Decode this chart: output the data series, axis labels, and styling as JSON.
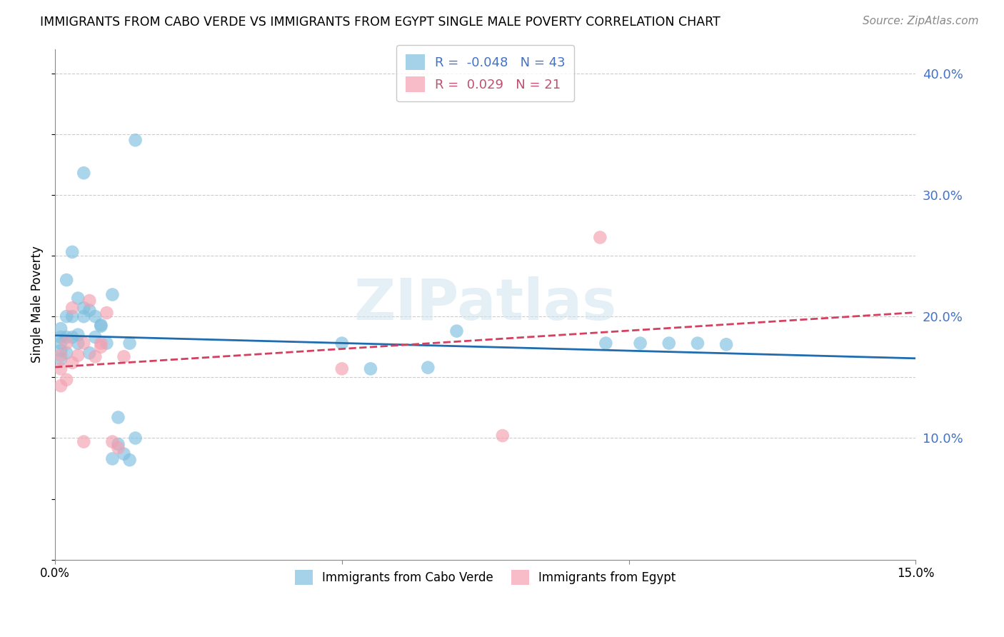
{
  "title": "IMMIGRANTS FROM CABO VERDE VS IMMIGRANTS FROM EGYPT SINGLE MALE POVERTY CORRELATION CHART",
  "source": "Source: ZipAtlas.com",
  "ylabel": "Single Male Poverty",
  "x_min": 0.0,
  "x_max": 0.15,
  "y_min": 0.0,
  "y_max": 0.42,
  "cabo_verde_R": -0.048,
  "cabo_verde_N": 43,
  "egypt_R": 0.029,
  "egypt_N": 21,
  "cabo_verde_color": "#7fbfdf",
  "egypt_color": "#f4a0b0",
  "cabo_verde_line_color": "#1f6cb0",
  "egypt_line_color": "#d44060",
  "watermark": "ZIPatlas",
  "cabo_verde_x": [
    0.001,
    0.001,
    0.001,
    0.001,
    0.001,
    0.002,
    0.002,
    0.002,
    0.002,
    0.003,
    0.003,
    0.003,
    0.004,
    0.004,
    0.004,
    0.005,
    0.005,
    0.005,
    0.006,
    0.006,
    0.007,
    0.007,
    0.008,
    0.008,
    0.009,
    0.01,
    0.01,
    0.011,
    0.011,
    0.012,
    0.013,
    0.013,
    0.014,
    0.014,
    0.05,
    0.055,
    0.065,
    0.07,
    0.096,
    0.102,
    0.107,
    0.112,
    0.117
  ],
  "cabo_verde_y": [
    0.19,
    0.183,
    0.178,
    0.172,
    0.165,
    0.23,
    0.2,
    0.183,
    0.17,
    0.253,
    0.2,
    0.183,
    0.215,
    0.185,
    0.178,
    0.318,
    0.207,
    0.2,
    0.205,
    0.17,
    0.2,
    0.183,
    0.193,
    0.192,
    0.178,
    0.218,
    0.083,
    0.117,
    0.095,
    0.087,
    0.178,
    0.082,
    0.345,
    0.1,
    0.178,
    0.157,
    0.158,
    0.188,
    0.178,
    0.178,
    0.178,
    0.178,
    0.177
  ],
  "egypt_x": [
    0.001,
    0.001,
    0.001,
    0.002,
    0.002,
    0.003,
    0.003,
    0.004,
    0.005,
    0.005,
    0.006,
    0.007,
    0.008,
    0.008,
    0.009,
    0.01,
    0.011,
    0.012,
    0.05,
    0.078,
    0.095
  ],
  "egypt_y": [
    0.168,
    0.157,
    0.143,
    0.178,
    0.148,
    0.207,
    0.162,
    0.168,
    0.178,
    0.097,
    0.213,
    0.167,
    0.178,
    0.175,
    0.203,
    0.097,
    0.092,
    0.167,
    0.157,
    0.102,
    0.265
  ]
}
